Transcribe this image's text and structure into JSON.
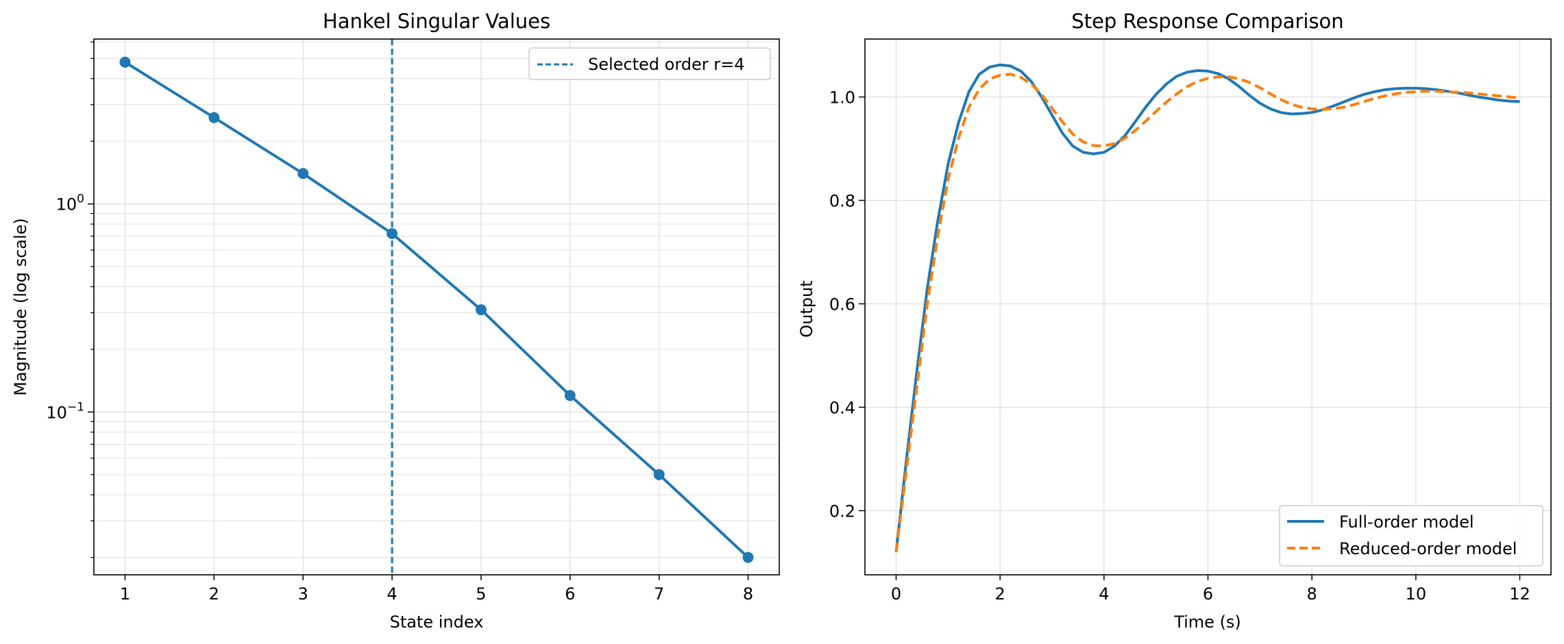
{
  "colors": {
    "blue": "#1f77b4",
    "orange": "#ff7f0e",
    "grid": "#dddddd"
  },
  "chart_data": [
    {
      "type": "line",
      "title": "Hankel Singular Values",
      "xlabel": "State index",
      "ylabel": "Magnitude (log scale)",
      "yscale": "log",
      "xlim": [
        0.65,
        8.35
      ],
      "ylim": [
        0.0165,
        6.2
      ],
      "xticks": [
        1,
        2,
        3,
        4,
        5,
        6,
        7,
        8
      ],
      "xtick_labels": [
        "1",
        "2",
        "3",
        "4",
        "5",
        "6",
        "7",
        "8"
      ],
      "yticks": [
        0.1,
        1
      ],
      "ytick_labels": [
        {
          "base": "10",
          "exp": "−1"
        },
        {
          "base": "10",
          "exp": "0"
        }
      ],
      "grid": true,
      "legend_loc": "upper right",
      "series": [
        {
          "x": [
            1,
            2,
            3,
            4,
            5,
            6,
            7,
            8
          ],
          "values": [
            4.8,
            2.6,
            1.4,
            0.72,
            0.31,
            0.12,
            0.05,
            0.02
          ],
          "color": "#1f77b4",
          "marker": "circle"
        }
      ],
      "vline": {
        "x": 4,
        "label": "Selected order r=4",
        "color": "#1f77b4",
        "style": "dashed"
      }
    },
    {
      "type": "line",
      "title": "Step Response Comparison",
      "xlabel": "Time (s)",
      "ylabel": "Output",
      "xlim": [
        -0.6,
        12.6
      ],
      "ylim": [
        0.076,
        1.112
      ],
      "xticks": [
        0,
        2,
        4,
        6,
        8,
        10,
        12
      ],
      "xtick_labels": [
        "0",
        "2",
        "4",
        "6",
        "8",
        "10",
        "12"
      ],
      "yticks": [
        0.2,
        0.4,
        0.6,
        0.8,
        1.0
      ],
      "ytick_labels": [
        "0.2",
        "0.4",
        "0.6",
        "0.8",
        "1.0"
      ],
      "grid": true,
      "legend_loc": "lower right",
      "series": [
        {
          "name": "Full-order model",
          "color": "#1f77b4",
          "style": "solid",
          "x": [
            0,
            0.2,
            0.4,
            0.6,
            0.8,
            1.0,
            1.2,
            1.4,
            1.6,
            1.8,
            2.0,
            2.2,
            2.4,
            2.6,
            2.8,
            3.0,
            3.2,
            3.4,
            3.6,
            3.8,
            4.0,
            4.2,
            4.4,
            4.6,
            4.8,
            5.0,
            5.2,
            5.4,
            5.6,
            5.8,
            6.0,
            6.2,
            6.4,
            6.6,
            6.8,
            7.0,
            7.2,
            7.4,
            7.6,
            7.8,
            8.0,
            8.2,
            8.4,
            8.6,
            8.8,
            9.0,
            9.2,
            9.4,
            9.6,
            9.8,
            10.0,
            10.2,
            10.4,
            10.6,
            10.8,
            11.0,
            11.2,
            11.4,
            11.6,
            11.8,
            12.0
          ],
          "values": [
            0.12,
            0.3,
            0.47,
            0.63,
            0.76,
            0.87,
            0.95,
            1.01,
            1.044,
            1.058,
            1.062,
            1.06,
            1.05,
            1.03,
            1.0,
            0.965,
            0.93,
            0.905,
            0.893,
            0.89,
            0.893,
            0.905,
            0.925,
            0.952,
            0.98,
            1.005,
            1.025,
            1.04,
            1.048,
            1.051,
            1.05,
            1.045,
            1.035,
            1.02,
            1.003,
            0.988,
            0.977,
            0.97,
            0.967,
            0.968,
            0.97,
            0.975,
            0.982,
            0.99,
            0.998,
            1.005,
            1.01,
            1.014,
            1.016,
            1.017,
            1.017,
            1.016,
            1.014,
            1.011,
            1.008,
            1.004,
            1.0,
            0.997,
            0.994,
            0.992,
            0.991
          ]
        },
        {
          "name": "Reduced-order model",
          "color": "#ff7f0e",
          "style": "dashed",
          "x": [
            0,
            0.2,
            0.4,
            0.6,
            0.8,
            1.0,
            1.2,
            1.4,
            1.6,
            1.8,
            2.0,
            2.2,
            2.4,
            2.6,
            2.8,
            3.0,
            3.2,
            3.4,
            3.6,
            3.8,
            4.0,
            4.2,
            4.4,
            4.6,
            4.8,
            5.0,
            5.2,
            5.4,
            5.6,
            5.8,
            6.0,
            6.2,
            6.4,
            6.6,
            6.8,
            7.0,
            7.2,
            7.4,
            7.6,
            7.8,
            8.0,
            8.2,
            8.4,
            8.6,
            8.8,
            9.0,
            9.2,
            9.4,
            9.6,
            9.8,
            10.0,
            10.2,
            10.4,
            10.6,
            10.8,
            11.0,
            11.2,
            11.4,
            11.6,
            11.8,
            12.0
          ],
          "values": [
            0.12,
            0.28,
            0.44,
            0.6,
            0.73,
            0.84,
            0.92,
            0.98,
            1.015,
            1.035,
            1.042,
            1.044,
            1.038,
            1.025,
            1.005,
            0.978,
            0.952,
            0.928,
            0.913,
            0.906,
            0.905,
            0.91,
            0.92,
            0.935,
            0.953,
            0.972,
            0.99,
            1.006,
            1.02,
            1.03,
            1.036,
            1.039,
            1.039,
            1.035,
            1.028,
            1.018,
            1.006,
            0.995,
            0.986,
            0.98,
            0.977,
            0.976,
            0.977,
            0.98,
            0.985,
            0.991,
            0.997,
            1.002,
            1.006,
            1.009,
            1.01,
            1.011,
            1.011,
            1.01,
            1.009,
            1.008,
            1.006,
            1.004,
            1.002,
            1.0,
            0.998
          ]
        }
      ]
    }
  ]
}
